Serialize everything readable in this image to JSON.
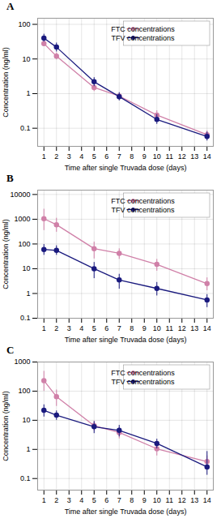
{
  "chart_data": [
    {
      "type": "line",
      "title": "A",
      "xlabel": "Time after single Truvada dose (days)",
      "ylabel": "Concentration (ng/ml)",
      "x": [
        1,
        2,
        5,
        7,
        10,
        14
      ],
      "series": [
        {
          "name": "FTC concentrations",
          "color": "#d080a8",
          "marker": "circle",
          "line_style": "solid",
          "values": [
            28,
            12,
            1.5,
            0.85,
            0.24,
            0.065
          ],
          "err_low": [
            5,
            2.5,
            0.35,
            0.12,
            0.06,
            0.018
          ],
          "err_high": [
            8,
            3.0,
            0.45,
            0.15,
            0.08,
            0.02
          ]
        },
        {
          "name": "TFV concentrations",
          "color": "#1a1a7e",
          "marker": "circle",
          "line_style": "solid",
          "values": [
            40,
            22,
            2.2,
            0.82,
            0.18,
            0.058
          ],
          "err_low": [
            9,
            6,
            0.6,
            0.2,
            0.05,
            0.015
          ],
          "err_high": [
            12,
            7,
            0.7,
            0.25,
            0.07,
            0.02
          ]
        }
      ],
      "xlim": [
        0.5,
        14.5
      ],
      "xticks": [
        1,
        2,
        3,
        4,
        5,
        6,
        7,
        8,
        9,
        10,
        11,
        12,
        13,
        14
      ],
      "ylim": [
        0.03,
        150
      ],
      "yticks": [
        0.1,
        1,
        10,
        100
      ],
      "log": "y",
      "grid": true,
      "legend": "upper right"
    },
    {
      "type": "line",
      "title": "B",
      "xlabel": "Time after single Truvada dose (days)",
      "ylabel": "Concentration (ng/ml)",
      "x": [
        1,
        2,
        5,
        7,
        10,
        14
      ],
      "series": [
        {
          "name": "FTC concentrations",
          "color": "#d080a8",
          "marker": "circle",
          "line_style": "solid",
          "values": [
            1050,
            600,
            65,
            42,
            15,
            2.5
          ],
          "err_low": [
            700,
            300,
            40,
            18,
            7,
            1.2
          ],
          "err_high": [
            1500,
            500,
            55,
            22,
            9,
            1.8
          ]
        },
        {
          "name": "TFV concentrations",
          "color": "#1a1a7e",
          "marker": "circle",
          "line_style": "solid",
          "values": [
            60,
            55,
            10,
            3.5,
            1.6,
            0.55
          ],
          "err_low": [
            25,
            20,
            6,
            2.0,
            0.8,
            0.28
          ],
          "err_high": [
            35,
            30,
            8,
            2.5,
            1.2,
            0.35
          ]
        }
      ],
      "xlim": [
        0.5,
        14.5
      ],
      "xticks": [
        1,
        2,
        3,
        4,
        5,
        6,
        7,
        8,
        9,
        10,
        11,
        12,
        13,
        14
      ],
      "ylim": [
        0.1,
        15000
      ],
      "yticks": [
        0.1,
        1,
        10,
        100,
        1000,
        10000
      ],
      "log": "y",
      "grid": true,
      "legend": "upper right"
    },
    {
      "type": "line",
      "title": "C",
      "xlabel": "Time after single Truvada dose (days)",
      "ylabel": "Concentration (ng/ml)",
      "x": [
        1,
        2,
        5,
        7,
        10,
        14
      ],
      "series": [
        {
          "name": "FTC concentrations",
          "color": "#d080a8",
          "marker": "circle",
          "line_style": "solid",
          "values": [
            230,
            65,
            6.5,
            3.8,
            1.05,
            0.38
          ],
          "err_low": [
            130,
            35,
            2.2,
            1.5,
            0.45,
            0.18
          ],
          "err_high": [
            250,
            45,
            2.8,
            1.8,
            0.55,
            0.22
          ]
        },
        {
          "name": "TFV concentrations",
          "color": "#1a1a7e",
          "marker": "circle",
          "line_style": "solid",
          "values": [
            22,
            15,
            6.0,
            4.5,
            1.6,
            0.25
          ],
          "err_low": [
            9,
            5,
            2.5,
            1.8,
            0.55,
            0.12
          ],
          "err_high": [
            12,
            6,
            3.0,
            2.2,
            0.65,
            0.6
          ]
        }
      ],
      "xlim": [
        0.5,
        14.5
      ],
      "xticks": [
        1,
        2,
        3,
        4,
        5,
        6,
        7,
        8,
        9,
        10,
        11,
        12,
        13,
        14
      ],
      "ylim": [
        0.04,
        1000
      ],
      "yticks": [
        0.1,
        1,
        10,
        100,
        1000
      ],
      "log": "y",
      "grid": true,
      "legend": "upper right"
    }
  ]
}
